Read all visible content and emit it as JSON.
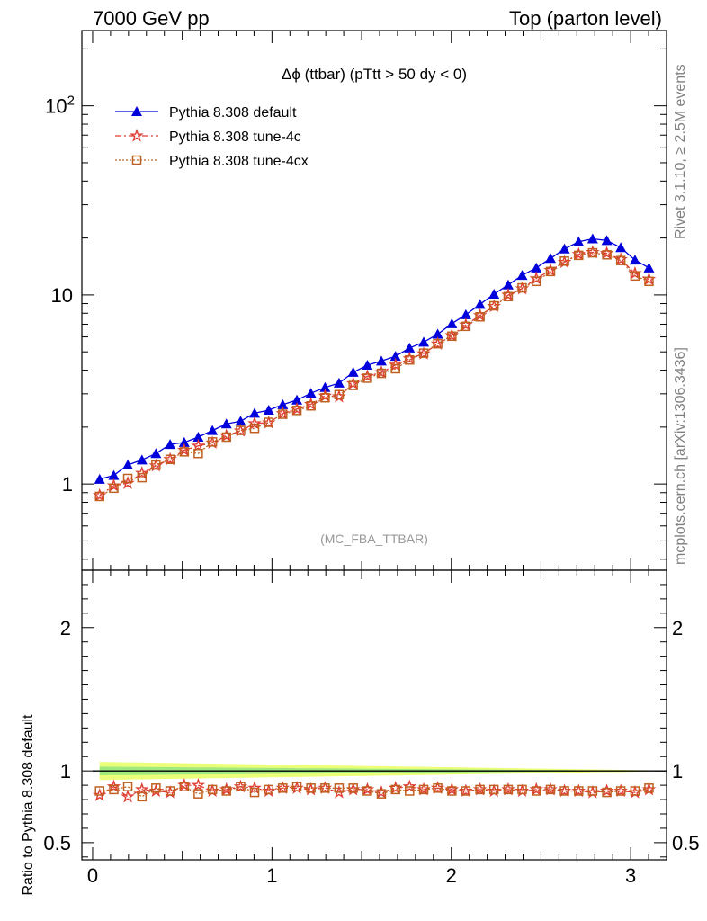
{
  "header": {
    "left": "7000 GeV pp",
    "right": "Top (parton level)"
  },
  "side_labels": {
    "rivet": "Rivet 3.1.10, ≥ 2.5M events",
    "mcplots": "mcplots.cern.ch [arXiv:1306.3436]"
  },
  "chart_data": [
    {
      "type": "line",
      "title": "Δϕ (ttbar) (pTtt > 50 dy < 0)",
      "watermark": "(MC_FBA_TTBAR)",
      "yscale": "log",
      "ylim": [
        0.35,
        250
      ],
      "xlim": [
        -0.06,
        3.2
      ],
      "yticks": [
        {
          "v": 1,
          "label": "1"
        },
        {
          "v": 10,
          "label": "10"
        },
        {
          "v": 100,
          "label": "10^2"
        }
      ],
      "legend_position": "top-left",
      "x": [
        0.039,
        0.118,
        0.196,
        0.275,
        0.353,
        0.432,
        0.511,
        0.589,
        0.668,
        0.746,
        0.825,
        0.903,
        0.982,
        1.06,
        1.139,
        1.217,
        1.296,
        1.374,
        1.453,
        1.532,
        1.61,
        1.689,
        1.767,
        1.846,
        1.924,
        2.003,
        2.081,
        2.16,
        2.238,
        2.317,
        2.395,
        2.474,
        2.553,
        2.631,
        2.71,
        2.788,
        2.867,
        2.945,
        3.024,
        3.102
      ],
      "series": [
        {
          "name": "Pythia 8.308 default",
          "color": "#0000dd",
          "marker": "triangle",
          "values": [
            1.06,
            1.11,
            1.26,
            1.34,
            1.45,
            1.62,
            1.66,
            1.77,
            1.92,
            2.08,
            2.15,
            2.37,
            2.46,
            2.63,
            2.78,
            3.02,
            3.24,
            3.42,
            3.9,
            4.25,
            4.47,
            4.74,
            5.24,
            5.63,
            6.2,
            7.05,
            7.86,
            8.92,
            10.1,
            11.3,
            12.7,
            13.9,
            15.6,
            17.5,
            19.1,
            19.8,
            19.4,
            17.8,
            15.3,
            13.9
          ]
        },
        {
          "name": "Pythia 8.308 tune-4c",
          "color": "#e03c31",
          "marker": "star",
          "values": [
            0.87,
            0.98,
            1.01,
            1.14,
            1.25,
            1.35,
            1.51,
            1.59,
            1.65,
            1.8,
            1.91,
            2.09,
            2.11,
            2.36,
            2.49,
            2.64,
            2.92,
            2.9,
            3.4,
            3.71,
            3.89,
            4.26,
            4.6,
            4.89,
            5.51,
            6.1,
            6.94,
            7.79,
            8.71,
            9.99,
            10.8,
            12.2,
            13.5,
            14.9,
            16.4,
            16.8,
            16.6,
            15.4,
            13.0,
            12.1
          ]
        },
        {
          "name": "Pythia 8.308 tune-4cx",
          "color": "#c06020",
          "marker": "square",
          "values": [
            0.86,
            0.95,
            1.07,
            1.08,
            1.26,
            1.35,
            1.48,
            1.45,
            1.67,
            1.77,
            1.92,
            1.97,
            2.12,
            2.34,
            2.45,
            2.59,
            2.86,
            2.97,
            3.32,
            3.63,
            3.85,
            4.07,
            4.53,
            4.92,
            5.52,
            6.05,
            6.82,
            7.66,
            8.76,
            9.8,
            10.9,
            11.8,
            13.3,
            15.1,
            16.2,
            16.7,
            16.3,
            15.2,
            12.6,
            11.8
          ]
        }
      ]
    },
    {
      "type": "line",
      "ylabel": "Ratio to Pythia 8.308 default",
      "ylim": [
        0.38,
        2.4
      ],
      "xlim": [
        -0.06,
        3.2
      ],
      "yticks": [
        {
          "v": 0.5,
          "label": "0.5"
        },
        {
          "v": 1,
          "label": "1"
        },
        {
          "v": 2,
          "label": "2"
        }
      ],
      "xticks": [
        {
          "v": 0,
          "label": "0"
        },
        {
          "v": 1,
          "label": "1"
        },
        {
          "v": 2,
          "label": "2"
        },
        {
          "v": 3,
          "label": "3"
        }
      ],
      "band_color": "#e8ff60",
      "band_inner_color": "#80e080",
      "series": [
        {
          "name": "Pythia 8.308 tune-4c",
          "color": "#e03c31",
          "marker": "star",
          "values": [
            0.83,
            0.89,
            0.82,
            0.87,
            0.86,
            0.85,
            0.9,
            0.9,
            0.86,
            0.87,
            0.89,
            0.88,
            0.86,
            0.88,
            0.88,
            0.87,
            0.88,
            0.85,
            0.87,
            0.87,
            0.85,
            0.88,
            0.89,
            0.87,
            0.88,
            0.87,
            0.86,
            0.87,
            0.86,
            0.87,
            0.86,
            0.87,
            0.87,
            0.86,
            0.86,
            0.85,
            0.86,
            0.86,
            0.85,
            0.87
          ]
        },
        {
          "name": "Pythia 8.308 tune-4cx",
          "color": "#c06020",
          "marker": "square",
          "values": [
            0.86,
            0.87,
            0.89,
            0.82,
            0.88,
            0.86,
            0.89,
            0.84,
            0.87,
            0.86,
            0.89,
            0.85,
            0.87,
            0.88,
            0.89,
            0.88,
            0.88,
            0.88,
            0.88,
            0.86,
            0.84,
            0.87,
            0.86,
            0.87,
            0.88,
            0.86,
            0.86,
            0.87,
            0.87,
            0.87,
            0.87,
            0.86,
            0.87,
            0.86,
            0.86,
            0.86,
            0.85,
            0.86,
            0.86,
            0.88
          ]
        }
      ]
    }
  ]
}
